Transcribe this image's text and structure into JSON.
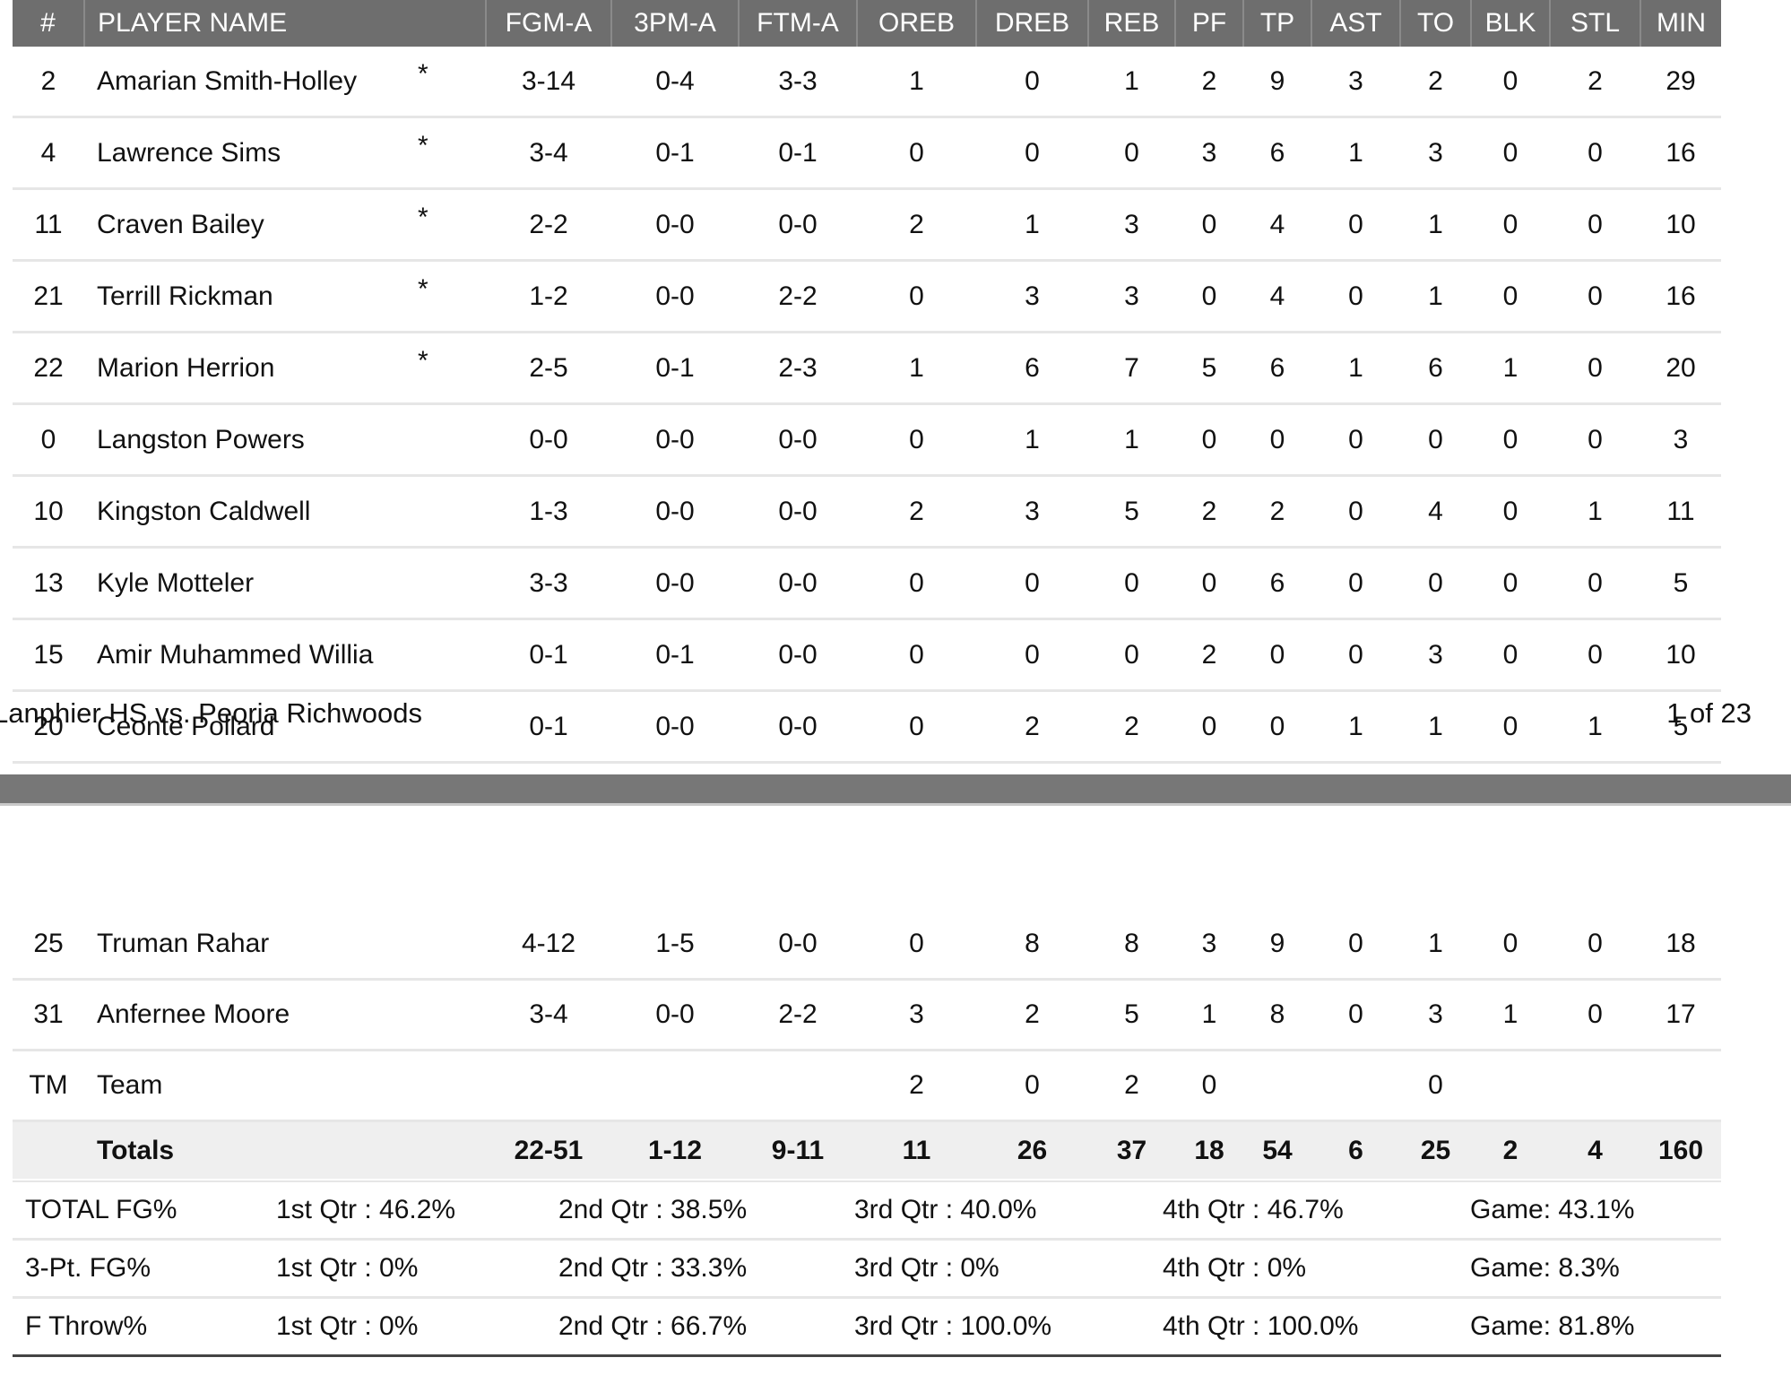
{
  "columns": [
    "#",
    "PLAYER NAME",
    "",
    "FGM-A",
    "3PM-A",
    "FTM-A",
    "OREB",
    "DREB",
    "REB",
    "PF",
    "TP",
    "AST",
    "TO",
    "BLK",
    "STL",
    "MIN"
  ],
  "players_top": [
    {
      "num": "2",
      "name": "Amarian Smith-Holley",
      "star": "*",
      "fgma": "3-14",
      "tpma": "0-4",
      "ftma": "3-3",
      "oreb": "1",
      "dreb": "0",
      "reb": "1",
      "pf": "2",
      "tp": "9",
      "ast": "3",
      "to": "2",
      "blk": "0",
      "stl": "2",
      "min": "29"
    },
    {
      "num": "4",
      "name": "Lawrence Sims",
      "star": "*",
      "fgma": "3-4",
      "tpma": "0-1",
      "ftma": "0-1",
      "oreb": "0",
      "dreb": "0",
      "reb": "0",
      "pf": "3",
      "tp": "6",
      "ast": "1",
      "to": "3",
      "blk": "0",
      "stl": "0",
      "min": "16"
    },
    {
      "num": "11",
      "name": "Craven Bailey",
      "star": "*",
      "fgma": "2-2",
      "tpma": "0-0",
      "ftma": "0-0",
      "oreb": "2",
      "dreb": "1",
      "reb": "3",
      "pf": "0",
      "tp": "4",
      "ast": "0",
      "to": "1",
      "blk": "0",
      "stl": "0",
      "min": "10"
    },
    {
      "num": "21",
      "name": "Terrill Rickman",
      "star": "*",
      "fgma": "1-2",
      "tpma": "0-0",
      "ftma": "2-2",
      "oreb": "0",
      "dreb": "3",
      "reb": "3",
      "pf": "0",
      "tp": "4",
      "ast": "0",
      "to": "1",
      "blk": "0",
      "stl": "0",
      "min": "16"
    },
    {
      "num": "22",
      "name": "Marion Herrion",
      "star": "*",
      "fgma": "2-5",
      "tpma": "0-1",
      "ftma": "2-3",
      "oreb": "1",
      "dreb": "6",
      "reb": "7",
      "pf": "5",
      "tp": "6",
      "ast": "1",
      "to": "6",
      "blk": "1",
      "stl": "0",
      "min": "20"
    },
    {
      "num": "0",
      "name": "Langston Powers",
      "star": "",
      "fgma": "0-0",
      "tpma": "0-0",
      "ftma": "0-0",
      "oreb": "0",
      "dreb": "1",
      "reb": "1",
      "pf": "0",
      "tp": "0",
      "ast": "0",
      "to": "0",
      "blk": "0",
      "stl": "0",
      "min": "3"
    },
    {
      "num": "10",
      "name": "Kingston Caldwell",
      "star": "",
      "fgma": "1-3",
      "tpma": "0-0",
      "ftma": "0-0",
      "oreb": "2",
      "dreb": "3",
      "reb": "5",
      "pf": "2",
      "tp": "2",
      "ast": "0",
      "to": "4",
      "blk": "0",
      "stl": "1",
      "min": "11"
    },
    {
      "num": "13",
      "name": "Kyle Motteler",
      "star": "",
      "fgma": "3-3",
      "tpma": "0-0",
      "ftma": "0-0",
      "oreb": "0",
      "dreb": "0",
      "reb": "0",
      "pf": "0",
      "tp": "6",
      "ast": "0",
      "to": "0",
      "blk": "0",
      "stl": "0",
      "min": "5"
    },
    {
      "num": "15",
      "name": "Amir Muhammed Willia",
      "star": "",
      "fgma": "0-1",
      "tpma": "0-1",
      "ftma": "0-0",
      "oreb": "0",
      "dreb": "0",
      "reb": "0",
      "pf": "2",
      "tp": "0",
      "ast": "0",
      "to": "3",
      "blk": "0",
      "stl": "0",
      "min": "10"
    },
    {
      "num": "20",
      "name": "Ceonte Pollard",
      "star": "",
      "fgma": "0-1",
      "tpma": "0-0",
      "ftma": "0-0",
      "oreb": "0",
      "dreb": "2",
      "reb": "2",
      "pf": "0",
      "tp": "0",
      "ast": "1",
      "to": "1",
      "blk": "0",
      "stl": "1",
      "min": "5"
    }
  ],
  "footer": {
    "title": "Lanphier HS vs. Peoria Richwoods",
    "page": "1 of 23"
  },
  "players_bottom": [
    {
      "num": "25",
      "name": "Truman Rahar",
      "star": "",
      "fgma": "4-12",
      "tpma": "1-5",
      "ftma": "0-0",
      "oreb": "0",
      "dreb": "8",
      "reb": "8",
      "pf": "3",
      "tp": "9",
      "ast": "0",
      "to": "1",
      "blk": "0",
      "stl": "0",
      "min": "18"
    },
    {
      "num": "31",
      "name": "Anfernee Moore",
      "star": "",
      "fgma": "3-4",
      "tpma": "0-0",
      "ftma": "2-2",
      "oreb": "3",
      "dreb": "2",
      "reb": "5",
      "pf": "1",
      "tp": "8",
      "ast": "0",
      "to": "3",
      "blk": "1",
      "stl": "0",
      "min": "17"
    },
    {
      "num": "TM",
      "name": "Team",
      "star": "",
      "fgma": "",
      "tpma": "",
      "ftma": "",
      "oreb": "2",
      "dreb": "0",
      "reb": "2",
      "pf": "0",
      "tp": "",
      "ast": "",
      "to": "0",
      "blk": "",
      "stl": "",
      "min": ""
    }
  ],
  "totals": {
    "num": "",
    "name": "Totals",
    "star": "",
    "fgma": "22-51",
    "tpma": "1-12",
    "ftma": "9-11",
    "oreb": "11",
    "dreb": "26",
    "reb": "37",
    "pf": "18",
    "tp": "54",
    "ast": "6",
    "to": "25",
    "blk": "2",
    "stl": "4",
    "min": "160"
  },
  "percentages": [
    {
      "label": "TOTAL FG%",
      "q1": "1st Qtr : 46.2%",
      "q2": "2nd Qtr : 38.5%",
      "q3": "3rd Qtr : 40.0%",
      "q4": "4th Qtr : 46.7%",
      "game": "Game: 43.1%"
    },
    {
      "label": "3-Pt. FG%",
      "q1": "1st Qtr : 0%",
      "q2": "2nd Qtr : 33.3%",
      "q3": "3rd Qtr : 0%",
      "q4": "4th Qtr : 0%",
      "game": "Game: 8.3%"
    },
    {
      "label": "F Throw%",
      "q1": "1st Qtr : 0%",
      "q2": "2nd Qtr : 66.7%",
      "q3": "3rd Qtr : 100.0%",
      "q4": "4th Qtr : 100.0%",
      "game": "Game: 81.8%"
    }
  ]
}
